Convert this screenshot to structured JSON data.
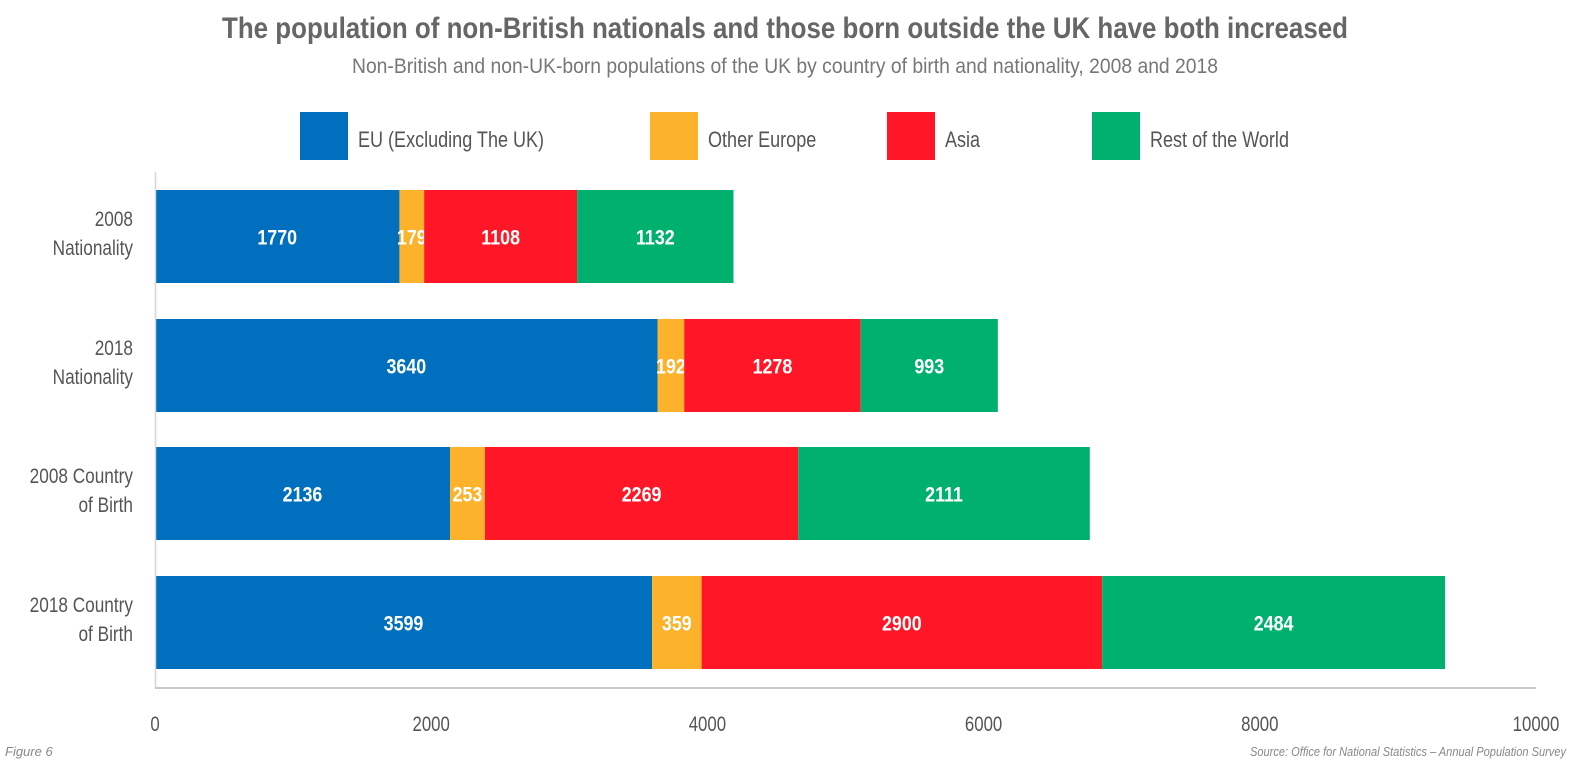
{
  "chart_data": {
    "type": "bar",
    "orientation": "horizontal",
    "stacked": true,
    "title": "The population of non-British nationals and those born outside the UK have both increased",
    "subtitle": "Non-British and non-UK-born populations of the UK by country of birth and nationality, 2008 and 2018",
    "categories": [
      [
        "2008",
        "Nationality"
      ],
      [
        "2018",
        "Nationality"
      ],
      [
        "2008 Country",
        "of Birth"
      ],
      [
        "2018 Country",
        "of Birth"
      ]
    ],
    "series": [
      {
        "name": "EU (Excluding The UK)",
        "color": "#0070BE",
        "values": [
          1770,
          3640,
          2136,
          3599
        ]
      },
      {
        "name": "Other Europe",
        "color": "#FDB22B",
        "values": [
          179,
          192,
          253,
          359
        ]
      },
      {
        "name": "Asia",
        "color": "#FF1627",
        "values": [
          1108,
          1278,
          2269,
          2900
        ]
      },
      {
        "name": "Rest of the World",
        "color": "#00B06E",
        "values": [
          1132,
          993,
          2111,
          2484
        ]
      }
    ],
    "xlim": [
      0,
      10000
    ],
    "xticks": [
      "0",
      "2000",
      "4000",
      "6000",
      "8000",
      "10000"
    ],
    "xlabel": "",
    "ylabel": "",
    "grid": false,
    "legend": "top",
    "data_labels": true
  },
  "footer": {
    "figure": "Figure 6",
    "source": "Source: Office for National Statistics – Annual Population Survey"
  }
}
